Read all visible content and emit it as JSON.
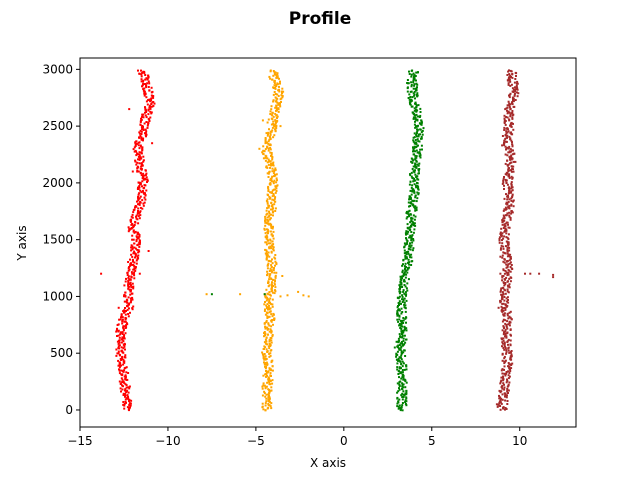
{
  "chart_data": {
    "type": "scatter",
    "title": "Profile",
    "xlabel": "X axis",
    "ylabel": "Y axis",
    "xlim": [
      -15,
      13.2
    ],
    "ylim": [
      -150,
      3100
    ],
    "x_ticks": [
      -15,
      -10,
      -5,
      0,
      5,
      10
    ],
    "y_ticks": [
      0,
      500,
      1000,
      1500,
      2000,
      2500,
      3000
    ],
    "grid": false,
    "legend": "none",
    "series": [
      {
        "color": "#ff0000",
        "profile": [
          [
            0,
            -12.3
          ],
          [
            150,
            -12.4
          ],
          [
            300,
            -12.5
          ],
          [
            400,
            -12.6
          ],
          [
            500,
            -12.7
          ],
          [
            600,
            -12.6
          ],
          [
            700,
            -12.7
          ],
          [
            800,
            -12.5
          ],
          [
            900,
            -12.2
          ],
          [
            1000,
            -12.3
          ],
          [
            1100,
            -12.2
          ],
          [
            1200,
            -12.1
          ],
          [
            1300,
            -12.0
          ],
          [
            1400,
            -11.9
          ],
          [
            1500,
            -11.8
          ],
          [
            1600,
            -12.0
          ],
          [
            1700,
            -11.8
          ],
          [
            1800,
            -11.6
          ],
          [
            1900,
            -11.5
          ],
          [
            2000,
            -11.4
          ],
          [
            2100,
            -11.5
          ],
          [
            2200,
            -11.6
          ],
          [
            2300,
            -11.7
          ],
          [
            2400,
            -11.5
          ],
          [
            2500,
            -11.4
          ],
          [
            2600,
            -11.2
          ],
          [
            2700,
            -11.0
          ],
          [
            2800,
            -11.1
          ],
          [
            2900,
            -11.3
          ],
          [
            3000,
            -11.5
          ]
        ],
        "outliers": [
          [
            -13.8,
            1200
          ],
          [
            -12.9,
            700
          ],
          [
            -12.8,
            900
          ],
          [
            -12.1,
            1100
          ],
          [
            -11.6,
            1200
          ],
          [
            -12.2,
            2650
          ],
          [
            -11.1,
            1400
          ],
          [
            -12.0,
            2100
          ],
          [
            -10.9,
            2350
          ]
        ]
      },
      {
        "color": "#ffa500",
        "profile": [
          [
            0,
            -4.4
          ],
          [
            150,
            -4.4
          ],
          [
            300,
            -4.3
          ],
          [
            400,
            -4.3
          ],
          [
            500,
            -4.4
          ],
          [
            600,
            -4.3
          ],
          [
            700,
            -4.3
          ],
          [
            800,
            -4.2
          ],
          [
            900,
            -4.3
          ],
          [
            1000,
            -4.2
          ],
          [
            1100,
            -4.1
          ],
          [
            1200,
            -4.1
          ],
          [
            1300,
            -4.1
          ],
          [
            1400,
            -4.2
          ],
          [
            1500,
            -4.2
          ],
          [
            1600,
            -4.3
          ],
          [
            1700,
            -4.2
          ],
          [
            1800,
            -4.1
          ],
          [
            1900,
            -4.1
          ],
          [
            2000,
            -4.0
          ],
          [
            2100,
            -4.1
          ],
          [
            2200,
            -4.3
          ],
          [
            2300,
            -4.4
          ],
          [
            2400,
            -4.2
          ],
          [
            2500,
            -4.1
          ],
          [
            2600,
            -4.0
          ],
          [
            2700,
            -3.8
          ],
          [
            2800,
            -3.7
          ],
          [
            2900,
            -3.9
          ],
          [
            3000,
            -4.1
          ]
        ],
        "outliers": [
          [
            -7.8,
            1020
          ],
          [
            -5.9,
            1020
          ],
          [
            -4.5,
            1020
          ],
          [
            -3.6,
            1000
          ],
          [
            -3.2,
            1010
          ],
          [
            -2.6,
            1040
          ],
          [
            -2.3,
            1010
          ],
          [
            -2.0,
            1000
          ],
          [
            -3.5,
            1180
          ],
          [
            -4.8,
            2300
          ],
          [
            -4.6,
            2550
          ],
          [
            -3.6,
            2500
          ]
        ]
      },
      {
        "color": "#008000",
        "profile": [
          [
            0,
            3.3
          ],
          [
            150,
            3.3
          ],
          [
            300,
            3.3
          ],
          [
            400,
            3.3
          ],
          [
            500,
            3.2
          ],
          [
            600,
            3.3
          ],
          [
            700,
            3.3
          ],
          [
            800,
            3.3
          ],
          [
            900,
            3.3
          ],
          [
            1000,
            3.3
          ],
          [
            1100,
            3.4
          ],
          [
            1200,
            3.5
          ],
          [
            1300,
            3.6
          ],
          [
            1400,
            3.7
          ],
          [
            1500,
            3.7
          ],
          [
            1600,
            3.8
          ],
          [
            1700,
            3.8
          ],
          [
            1800,
            3.9
          ],
          [
            1900,
            4.0
          ],
          [
            2000,
            4.0
          ],
          [
            2100,
            4.0
          ],
          [
            2200,
            4.1
          ],
          [
            2300,
            4.2
          ],
          [
            2400,
            4.2
          ],
          [
            2500,
            4.3
          ],
          [
            2600,
            4.2
          ],
          [
            2700,
            4.0
          ],
          [
            2800,
            3.9
          ],
          [
            2900,
            3.9
          ],
          [
            3000,
            4.0
          ]
        ],
        "outliers": [
          [
            -7.5,
            1020
          ],
          [
            -4.5,
            1020
          ],
          [
            2.9,
            550
          ],
          [
            3.0,
            600
          ],
          [
            4.4,
            2550
          ],
          [
            3.6,
            2880
          ]
        ]
      },
      {
        "color": "#a52a2a",
        "profile": [
          [
            0,
            9.0
          ],
          [
            150,
            9.1
          ],
          [
            300,
            9.2
          ],
          [
            400,
            9.3
          ],
          [
            500,
            9.3
          ],
          [
            600,
            9.2
          ],
          [
            700,
            9.3
          ],
          [
            800,
            9.3
          ],
          [
            900,
            9.2
          ],
          [
            1000,
            9.1
          ],
          [
            1100,
            9.2
          ],
          [
            1200,
            9.3
          ],
          [
            1300,
            9.3
          ],
          [
            1400,
            9.2
          ],
          [
            1500,
            9.1
          ],
          [
            1600,
            9.2
          ],
          [
            1700,
            9.3
          ],
          [
            1800,
            9.4
          ],
          [
            1900,
            9.4
          ],
          [
            2000,
            9.3
          ],
          [
            2100,
            9.4
          ],
          [
            2200,
            9.5
          ],
          [
            2300,
            9.4
          ],
          [
            2400,
            9.3
          ],
          [
            2500,
            9.4
          ],
          [
            2600,
            9.4
          ],
          [
            2700,
            9.5
          ],
          [
            2800,
            9.7
          ],
          [
            2900,
            9.6
          ],
          [
            3000,
            9.5
          ]
        ],
        "outliers": [
          [
            8.8,
            900
          ],
          [
            8.7,
            50
          ],
          [
            8.9,
            1350
          ],
          [
            8.9,
            1200
          ],
          [
            10.3,
            1200
          ],
          [
            10.6,
            1200
          ],
          [
            11.1,
            1200
          ],
          [
            11.9,
            1190
          ],
          [
            11.9,
            1170
          ],
          [
            9.0,
            2330
          ]
        ]
      }
    ]
  }
}
